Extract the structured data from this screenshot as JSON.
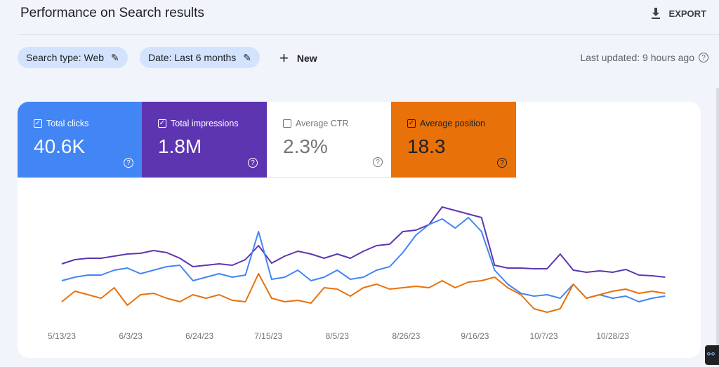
{
  "header": {
    "title": "Performance on Search results",
    "export_label": "EXPORT"
  },
  "filters": {
    "search_type": "Search type: Web",
    "date": "Date: Last 6 months",
    "new_label": "New",
    "last_updated": "Last updated: 9 hours ago"
  },
  "metrics": [
    {
      "label": "Total clicks",
      "value": "40.6K",
      "checked": true,
      "color": "#4285f4"
    },
    {
      "label": "Total impressions",
      "value": "1.8M",
      "checked": true,
      "color": "#5e35b1"
    },
    {
      "label": "Average CTR",
      "value": "2.3%",
      "checked": false,
      "color": "#ffffff"
    },
    {
      "label": "Average position",
      "value": "18.3",
      "checked": true,
      "color": "#e8710a"
    }
  ],
  "chart_data": {
    "type": "line",
    "x_start": "5/13/23",
    "x_step_days": 4,
    "x_ticks": [
      "5/13/23",
      "6/3/23",
      "6/24/23",
      "7/15/23",
      "8/5/23",
      "8/26/23",
      "9/16/23",
      "10/7/23",
      "10/28/23"
    ],
    "y_axis_labels": "none shown (relative scale)",
    "grid": false,
    "series": [
      {
        "metric": "Total impressions",
        "color": "#5e35b1",
        "values": [
          84,
          90,
          92,
          92,
          95,
          98,
          99,
          103,
          100,
          92,
          80,
          82,
          84,
          82,
          90,
          110,
          85,
          95,
          102,
          98,
          92,
          98,
          92,
          102,
          110,
          112,
          130,
          132,
          140,
          165,
          160,
          155,
          150,
          82,
          78,
          78,
          77,
          77,
          98,
          75,
          72,
          74,
          72,
          76,
          68,
          67,
          65
        ]
      },
      {
        "metric": "Total clicks",
        "color": "#4285f4",
        "values": [
          60,
          65,
          68,
          68,
          75,
          78,
          70,
          75,
          80,
          82,
          60,
          65,
          70,
          65,
          68,
          130,
          62,
          65,
          75,
          60,
          65,
          75,
          62,
          65,
          75,
          80,
          100,
          125,
          140,
          148,
          135,
          150,
          130,
          75,
          55,
          42,
          38,
          40,
          35,
          55,
          35,
          40,
          35,
          38,
          30,
          35,
          38
        ]
      },
      {
        "metric": "Average position",
        "color": "#e8710a",
        "values": [
          30,
          45,
          40,
          35,
          50,
          25,
          40,
          42,
          35,
          30,
          40,
          35,
          40,
          32,
          30,
          70,
          35,
          30,
          32,
          28,
          50,
          48,
          38,
          50,
          55,
          48,
          50,
          52,
          50,
          60,
          50,
          58,
          60,
          65,
          50,
          40,
          20,
          15,
          20,
          55,
          35,
          40,
          45,
          48,
          42,
          45,
          42
        ]
      }
    ]
  }
}
